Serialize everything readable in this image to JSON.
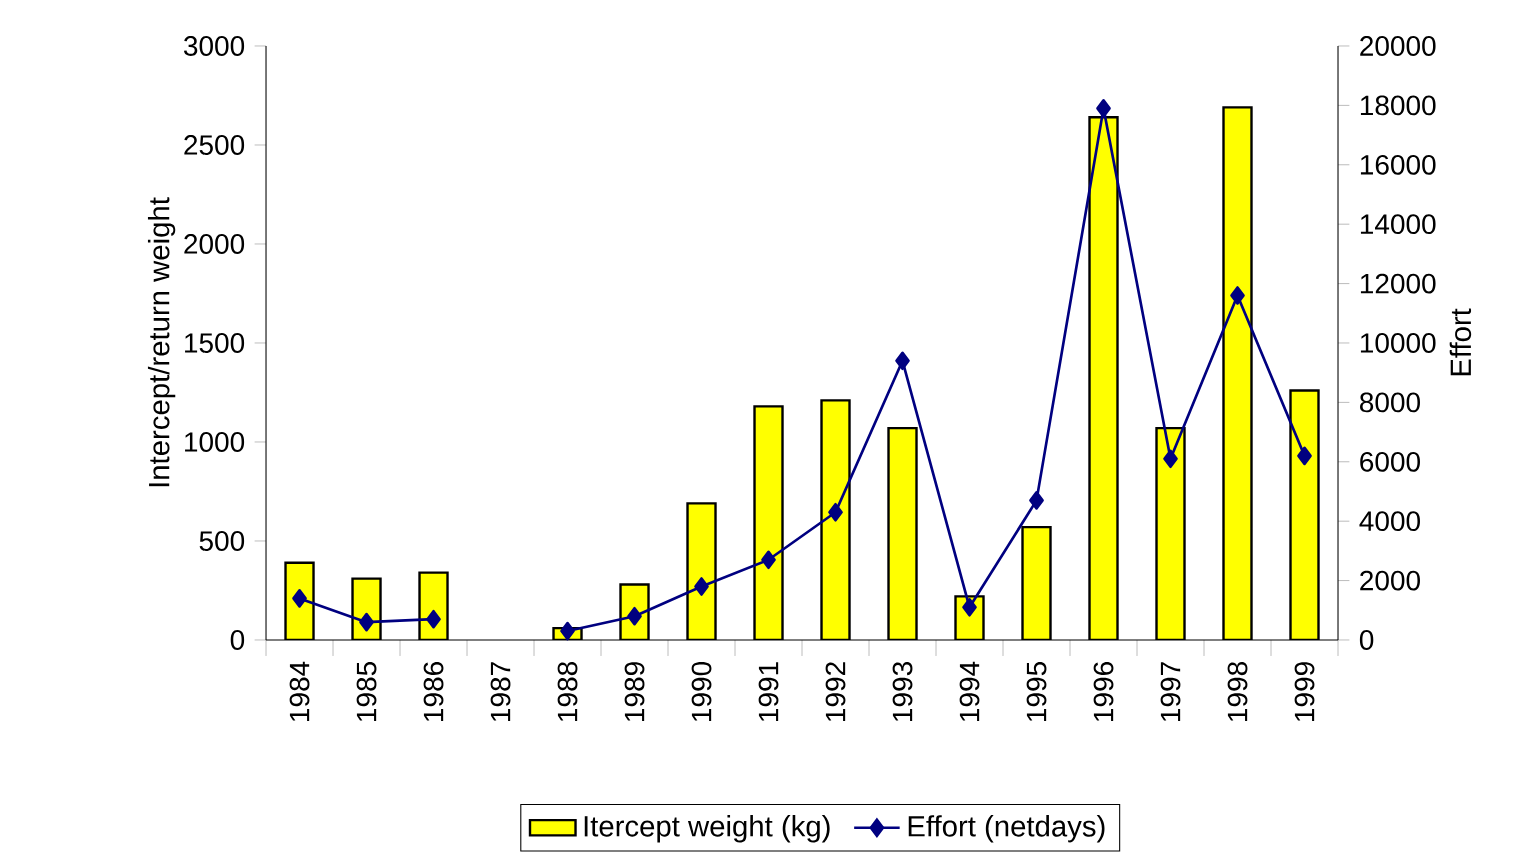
{
  "chart_data": {
    "type": "bar",
    "categories": [
      "1984",
      "1985",
      "1986",
      "1987",
      "1988",
      "1989",
      "1990",
      "1991",
      "1992",
      "1993",
      "1994",
      "1995",
      "1996",
      "1997",
      "1998",
      "1999"
    ],
    "ylabel": "Intercept/return weight",
    "y2label": "Effort",
    "ylim": [
      0,
      3000
    ],
    "yticks": [
      0,
      500,
      1000,
      1500,
      2000,
      2500,
      3000
    ],
    "y2lim": [
      0,
      20000
    ],
    "y2ticks": [
      0,
      2000,
      4000,
      6000,
      8000,
      10000,
      12000,
      14000,
      16000,
      18000,
      20000
    ],
    "legend": "bottom",
    "grid": false,
    "series": [
      {
        "name": "Itercept weight (kg)",
        "color": "#ffff00",
        "values": [
          390,
          310,
          340,
          null,
          60,
          280,
          690,
          1180,
          1210,
          1070,
          220,
          570,
          2640,
          1070,
          2690,
          1260
        ]
      },
      {
        "name": "Effort (netdays)",
        "type": "line",
        "axis": "y2",
        "color": "#000080",
        "marker": "diamond",
        "values": [
          1400,
          600,
          700,
          null,
          300,
          800,
          1800,
          2700,
          4300,
          9400,
          1100,
          4700,
          17900,
          6100,
          11600,
          6200
        ]
      }
    ]
  }
}
